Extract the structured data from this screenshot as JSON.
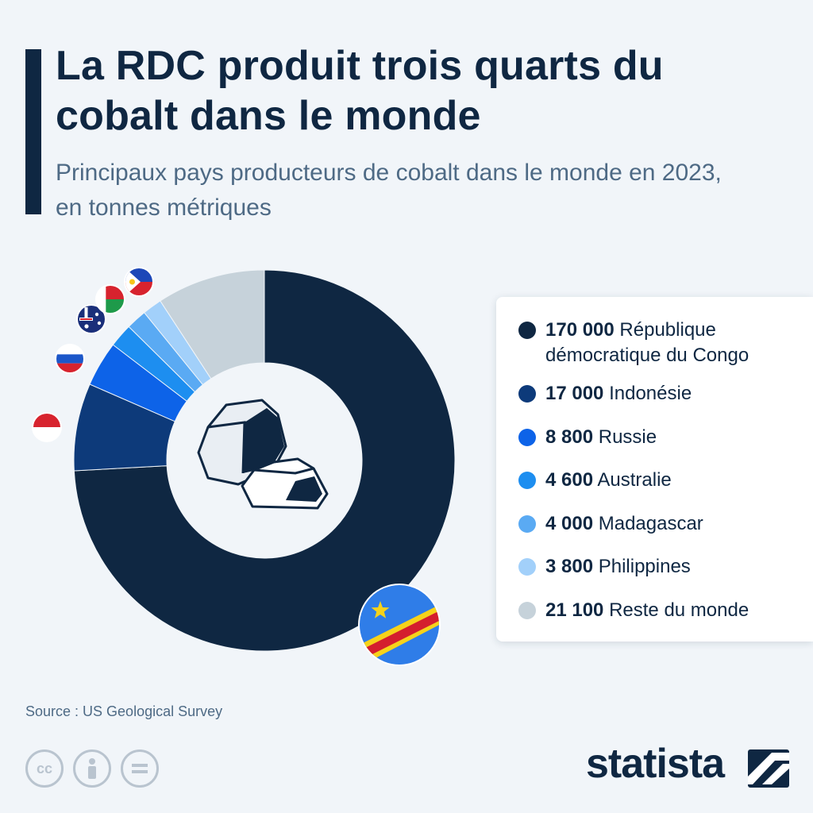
{
  "header": {
    "title": "La RDC produit trois quarts du cobalt dans le monde",
    "subtitle": "Principaux pays producteurs de cobalt dans le monde en 2023, en tonnes métriques"
  },
  "chart_data": {
    "type": "pie",
    "variant": "donut",
    "categories": [
      "République démocratique du Congo",
      "Indonésie",
      "Russie",
      "Australie",
      "Madagascar",
      "Philippines",
      "Reste du monde"
    ],
    "values": [
      170000,
      17000,
      8800,
      4600,
      4000,
      3800,
      21100
    ],
    "value_labels": [
      "170 000",
      "17 000",
      "8 800",
      "4 600",
      "4 000",
      "3 800",
      "21 100"
    ],
    "colors": [
      "#0f2742",
      "#0d3a7a",
      "#0d63e8",
      "#1d8ef0",
      "#5aaaf3",
      "#a2d0fa",
      "#c6d2da"
    ],
    "flag_icons": [
      "flag-dr-congo-icon",
      "flag-indonesia-icon",
      "flag-russia-icon",
      "flag-australia-icon",
      "flag-madagascar-icon",
      "flag-philippines-icon"
    ],
    "center_icon": "cobalt-ore-icon",
    "legend_placement": "right"
  },
  "footer": {
    "source": "Source : US Geological Survey",
    "brand": "statista",
    "license_icons": [
      "cc-icon",
      "attribution-icon",
      "no-derivatives-icon"
    ]
  }
}
